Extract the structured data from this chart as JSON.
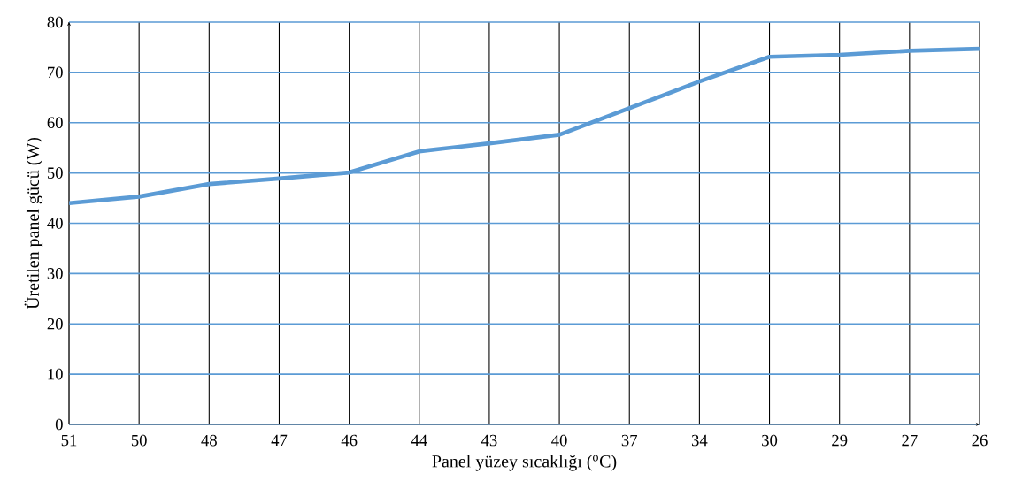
{
  "chart_data": {
    "type": "line",
    "xlabel": "Panel yüzey sıcaklığı ($^{o}$C)",
    "ylabel": "Üretilen panel gücü (W)",
    "categories": [
      "51",
      "50",
      "48",
      "47",
      "46",
      "44",
      "43",
      "40",
      "37",
      "34",
      "30",
      "29",
      "27",
      "26"
    ],
    "values": [
      44,
      45.3,
      47.8,
      48.9,
      50.1,
      54.3,
      55.9,
      57.6,
      62.9,
      68.2,
      73.1,
      73.5,
      74.3,
      74.7
    ],
    "color": "#5b9bd5",
    "ylim": [
      0,
      80
    ],
    "yticks": [
      0,
      10,
      20,
      30,
      40,
      50,
      60,
      70,
      80
    ],
    "grid": true,
    "marker": "none",
    "line_style": "solid"
  }
}
